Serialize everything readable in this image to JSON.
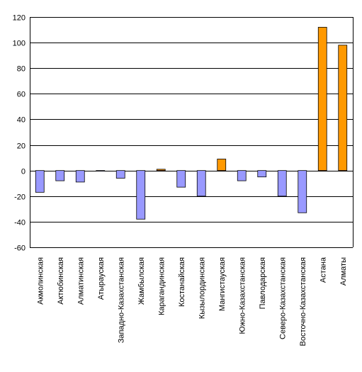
{
  "chart_data": {
    "type": "bar",
    "title": "",
    "xlabel": "",
    "ylabel": "",
    "ylim": [
      -60,
      120
    ],
    "yticks": [
      -60,
      -40,
      -20,
      0,
      20,
      40,
      60,
      80,
      100,
      120
    ],
    "grid": true,
    "legend": "none",
    "categories": [
      "Акмолинская",
      "Актюбинская",
      "Алматинская",
      "Атырауская",
      "Западно-Казахстанская",
      "Жамбылская",
      "Карагандинская",
      "Костанайская",
      "Кызылординская",
      "Мангистауская",
      "Южно-Казахстанская",
      "Павлодарская",
      "Северо-Казахстанская",
      "Восточно-Казахстанская",
      "Астана",
      "Алматы"
    ],
    "values": [
      -17,
      -8,
      -9,
      -0.5,
      -6,
      -38,
      1,
      -13,
      -20,
      9,
      -8,
      -5,
      -20,
      -33,
      112,
      98
    ],
    "colors": {
      "negative": "#9999ff",
      "positive": "#ff9900",
      "stroke": "#000000",
      "grid": "#000000"
    }
  }
}
